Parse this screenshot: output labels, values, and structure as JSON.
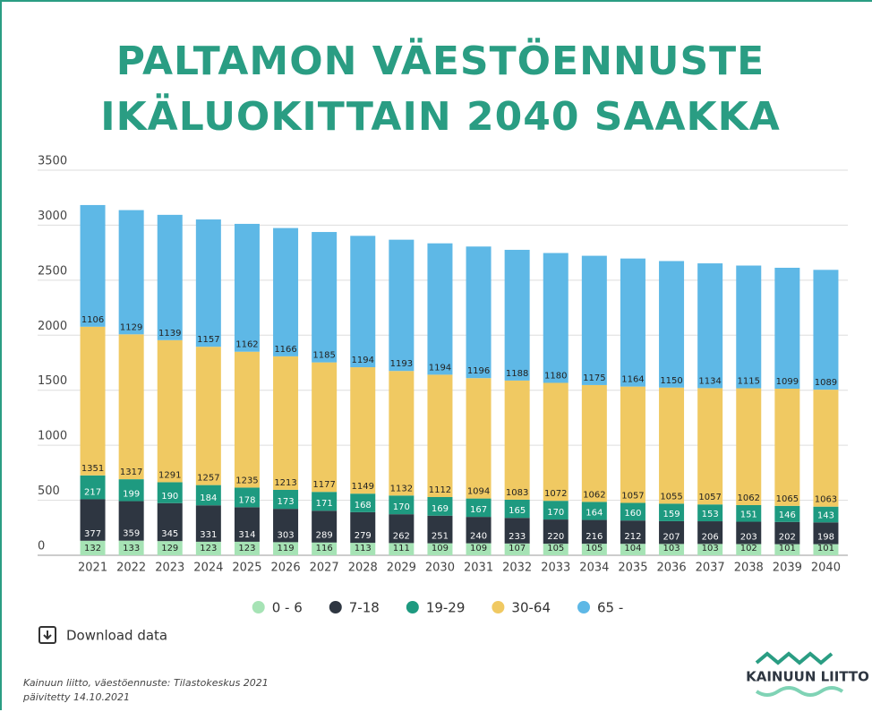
{
  "chart_data": {
    "type": "stacked_bar",
    "title": "PALTAMON VÄESTÖENNUSTE IKÄLUOKITTAIN 2040 SAAKKA",
    "categories": [
      "2021",
      "2022",
      "2023",
      "2024",
      "2025",
      "2026",
      "2027",
      "2028",
      "2029",
      "2030",
      "2031",
      "2032",
      "2033",
      "2034",
      "2035",
      "2036",
      "2037",
      "2038",
      "2039",
      "2040"
    ],
    "series": [
      {
        "name": "0 - 6",
        "color": "#a6e3b5",
        "values": [
          132,
          133,
          129,
          123,
          123,
          119,
          116,
          113,
          111,
          109,
          109,
          107,
          105,
          105,
          104,
          103,
          103,
          102,
          101,
          101
        ]
      },
      {
        "name": "7-18",
        "color": "#2e3641",
        "values": [
          377,
          359,
          345,
          331,
          314,
          303,
          289,
          279,
          262,
          251,
          240,
          233,
          220,
          216,
          212,
          207,
          206,
          203,
          202,
          198
        ]
      },
      {
        "name": "19-29",
        "color": "#1e9a80",
        "values": [
          217,
          199,
          190,
          184,
          178,
          173,
          171,
          168,
          170,
          169,
          167,
          165,
          170,
          164,
          160,
          159,
          153,
          151,
          146,
          143
        ]
      },
      {
        "name": "30-64",
        "color": "#f0c962",
        "values": [
          1351,
          1317,
          1291,
          1257,
          1235,
          1213,
          1177,
          1149,
          1132,
          1112,
          1094,
          1083,
          1072,
          1062,
          1057,
          1055,
          1057,
          1062,
          1065,
          1063
        ]
      },
      {
        "name": "65 -",
        "color": "#5eb8e6",
        "values": [
          1106,
          1129,
          1139,
          1157,
          1162,
          1166,
          1185,
          1194,
          1193,
          1194,
          1196,
          1188,
          1180,
          1175,
          1164,
          1150,
          1134,
          1115,
          1099,
          1089
        ]
      }
    ],
    "ylim": [
      0,
      3500
    ],
    "yticks": [
      0,
      500,
      1000,
      1500,
      2000,
      2500,
      3000,
      3500
    ],
    "grid": true,
    "legend": "bottom"
  },
  "download": "Download data",
  "source": [
    "Kainuun liitto, väestöennuste: Tilastokeskus 2021",
    "päivitetty 14.10.2021"
  ],
  "logo": "KAINUUN LIITTO"
}
